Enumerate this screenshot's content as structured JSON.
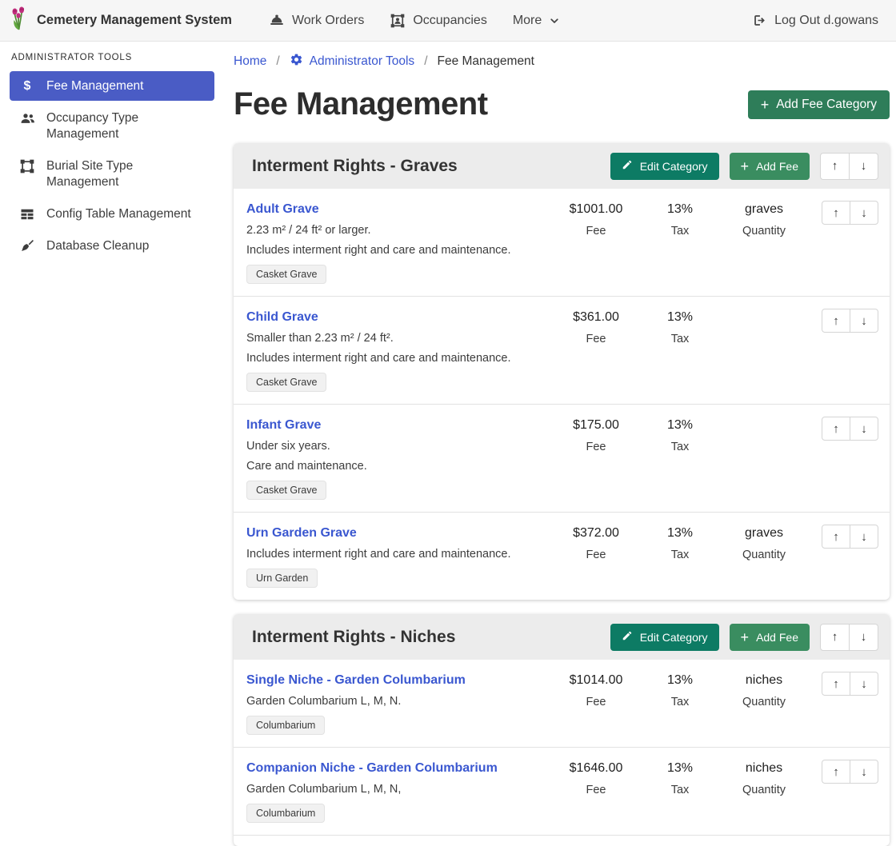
{
  "navbar": {
    "brand": "Cemetery Management System",
    "items": [
      {
        "label": "Work Orders",
        "icon": "hard-hat-icon"
      },
      {
        "label": "Occupancies",
        "icon": "occupancies-icon"
      },
      {
        "label": "More",
        "icon": "chevron-down-icon"
      }
    ],
    "logout_label": "Log Out d.gowans"
  },
  "sidebar": {
    "heading": "ADMINISTRATOR TOOLS",
    "items": [
      {
        "label": "Fee Management",
        "icon": "dollar-icon",
        "active": true
      },
      {
        "label": "Occupancy Type Management",
        "icon": "people-icon",
        "active": false
      },
      {
        "label": "Burial Site Type Management",
        "icon": "frame-icon",
        "active": false
      },
      {
        "label": "Config Table Management",
        "icon": "table-icon",
        "active": false
      },
      {
        "label": "Database Cleanup",
        "icon": "broom-icon",
        "active": false
      }
    ]
  },
  "breadcrumb": {
    "home": "Home",
    "section": "Administrator Tools",
    "current": "Fee Management",
    "separator": "/"
  },
  "page": {
    "title": "Fee Management",
    "add_category_label": "Add Fee Category"
  },
  "columns": {
    "fee": "Fee",
    "tax": "Tax",
    "quantity": "Quantity"
  },
  "glyphs": {
    "up": "↑",
    "down": "↓",
    "plus": "+"
  },
  "colors": {
    "accent_blue": "#4a5cc5",
    "link_blue": "#3a57d0",
    "teal_button": "#0d7b64",
    "green_button": "#3a8d60",
    "dark_green_button": "#2e7d59",
    "header_gray": "#ececec",
    "navbar_gray": "#f6f6f6"
  },
  "categories": [
    {
      "title": "Interment Rights - Graves",
      "edit_label": "Edit Category",
      "add_fee_label": "Add Fee",
      "more_rows_below": false,
      "fees": [
        {
          "name": "Adult Grave",
          "descriptions": [
            "2.23 m² / 24 ft² or larger.",
            "Includes interment right and care and maintenance."
          ],
          "badge": "Casket Grave",
          "fee": "$1001.00",
          "tax": "13%",
          "quantity": "graves"
        },
        {
          "name": "Child Grave",
          "descriptions": [
            "Smaller than 2.23 m² / 24 ft².",
            "Includes interment right and care and maintenance."
          ],
          "badge": "Casket Grave",
          "fee": "$361.00",
          "tax": "13%",
          "quantity": ""
        },
        {
          "name": "Infant Grave",
          "descriptions": [
            "Under six years.",
            "Care and maintenance."
          ],
          "badge": "Casket Grave",
          "fee": "$175.00",
          "tax": "13%",
          "quantity": ""
        },
        {
          "name": "Urn Garden Grave",
          "descriptions": [
            "Includes interment right and care and maintenance."
          ],
          "badge": "Urn Garden",
          "fee": "$372.00",
          "tax": "13%",
          "quantity": "graves"
        }
      ]
    },
    {
      "title": "Interment Rights - Niches",
      "edit_label": "Edit Category",
      "add_fee_label": "Add Fee",
      "more_rows_below": true,
      "fees": [
        {
          "name": "Single Niche - Garden Columbarium",
          "descriptions": [
            "Garden Columbarium L, M, N."
          ],
          "badge": "Columbarium",
          "fee": "$1014.00",
          "tax": "13%",
          "quantity": "niches"
        },
        {
          "name": "Companion Niche - Garden Columbarium",
          "descriptions": [
            "Garden Columbarium L, M, N,"
          ],
          "badge": "Columbarium",
          "fee": "$1646.00",
          "tax": "13%",
          "quantity": "niches"
        }
      ]
    }
  ]
}
